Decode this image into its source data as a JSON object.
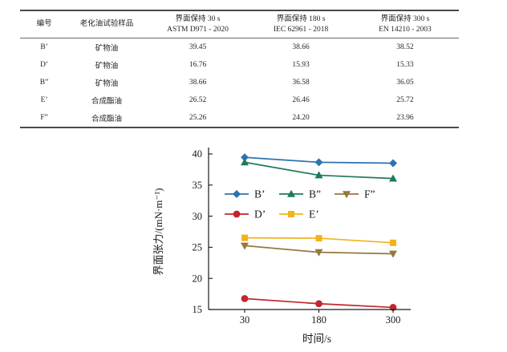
{
  "table": {
    "headers": {
      "id": "编号",
      "sample": "老化油试验样品",
      "c30_line1": "界面保持 30 s",
      "c30_line2": "ASTM D971 - 2020",
      "c180_line1": "界面保持 180 s",
      "c180_line2": "IEC 62961 - 2018",
      "c300_line1": "界面保持 300 s",
      "c300_line2": "EN 14210 - 2003"
    },
    "rows": [
      {
        "id": "B’",
        "sample": "矿物油",
        "v30": "39.45",
        "v180": "38.66",
        "v300": "38.52"
      },
      {
        "id": "D’",
        "sample": "矿物油",
        "v30": "16.76",
        "v180": "15.93",
        "v300": "15.33"
      },
      {
        "id": "B”",
        "sample": "矿物油",
        "v30": "38.66",
        "v180": "36.58",
        "v300": "36.05"
      },
      {
        "id": "E’",
        "sample": "合成酯油",
        "v30": "26.52",
        "v180": "26.46",
        "v300": "25.72"
      },
      {
        "id": "F”",
        "sample": "合成酯油",
        "v30": "25.26",
        "v180": "24.20",
        "v300": "23.96"
      }
    ]
  },
  "chart_data": {
    "type": "line",
    "title": "",
    "xlabel": "时间/s",
    "ylabel": "界面张力/(mN·m⁻¹)",
    "x_categories": [
      "30",
      "180",
      "300"
    ],
    "ylim": [
      15,
      40
    ],
    "yticks": [
      15,
      20,
      25,
      30,
      35,
      40
    ],
    "grid": false,
    "legend_position": "inside upper-left, two rows",
    "series": [
      {
        "name": "B’",
        "marker": "diamond",
        "color": "#2d73b0",
        "values": [
          39.45,
          38.66,
          38.52
        ]
      },
      {
        "name": "B”",
        "marker": "triangle-up",
        "color": "#1d7a60",
        "values": [
          38.66,
          36.58,
          36.05
        ]
      },
      {
        "name": "F”",
        "marker": "triangle-down",
        "color": "#94793e",
        "values": [
          25.26,
          24.2,
          23.96
        ]
      },
      {
        "name": "D’",
        "marker": "circle",
        "color": "#c1272d",
        "values": [
          16.76,
          15.93,
          15.33
        ]
      },
      {
        "name": "E’",
        "marker": "square",
        "color": "#f2b21c",
        "values": [
          26.52,
          26.46,
          25.72
        ]
      }
    ],
    "legend_rows": [
      [
        0,
        1,
        2
      ],
      [
        3,
        4
      ]
    ],
    "axis_color": "#1a1a1a"
  }
}
